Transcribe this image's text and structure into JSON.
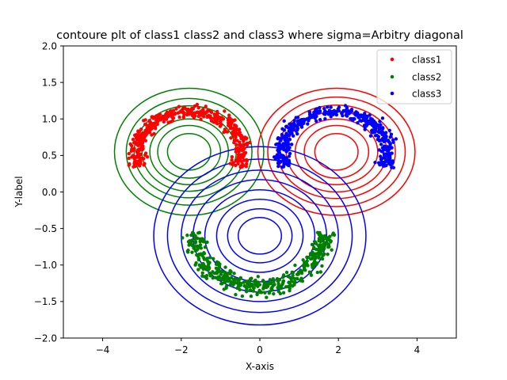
{
  "chart_data": {
    "type": "scatter",
    "title": "contoure plt of class1 class2 and class3 where sigma=Arbitry diagonal",
    "xlabel": "X-axis",
    "ylabel": "Y-label",
    "xlim": [
      -5,
      5
    ],
    "ylim": [
      -2,
      2
    ],
    "xticks": [
      "−4",
      "−2",
      "0",
      "2",
      "4"
    ],
    "yticks": [
      "−2.0",
      "−1.5",
      "−1.0",
      "−0.5",
      "0.0",
      "0.5",
      "1.0",
      "1.5",
      "2.0"
    ],
    "legend_position": "top-right",
    "series": [
      {
        "name": "class1",
        "color": "#ff0000",
        "shape": "upper-arc",
        "arc_center": [
          -1.8,
          0.55
        ],
        "arc_radius": [
          1.35,
          0.55
        ],
        "radial_spread": 0.08,
        "x_range": [
          -3.3,
          -0.7
        ],
        "y_range": [
          -0.3,
          1.2
        ],
        "approx_points": 420
      },
      {
        "name": "class2",
        "color": "#008000",
        "shape": "lower-arc",
        "arc_center": [
          0.0,
          -0.55
        ],
        "arc_radius": [
          1.65,
          0.75
        ],
        "radial_spread": 0.08,
        "x_range": [
          -1.7,
          1.8
        ],
        "y_range": [
          -1.4,
          0.5
        ],
        "approx_points": 420
      },
      {
        "name": "class3",
        "color": "#0000ff",
        "shape": "upper-arc",
        "arc_center": [
          1.9,
          0.55
        ],
        "arc_radius": [
          1.35,
          0.55
        ],
        "radial_spread": 0.08,
        "x_range": [
          0.4,
          3.3
        ],
        "y_range": [
          -0.3,
          1.2
        ],
        "approx_points": 420
      }
    ],
    "contours": [
      {
        "color": "#008000",
        "center": [
          -1.8,
          0.55
        ],
        "levels": [
          {
            "rx": 1.9,
            "ry": 0.87
          },
          {
            "rx": 1.6,
            "ry": 0.73
          },
          {
            "rx": 1.4,
            "ry": 0.63
          },
          {
            "rx": 1.2,
            "ry": 0.54
          },
          {
            "rx": 1.0,
            "ry": 0.45
          },
          {
            "rx": 0.8,
            "ry": 0.36
          },
          {
            "rx": 0.55,
            "ry": 0.25
          }
        ]
      },
      {
        "color": "#ff0000",
        "center": [
          1.95,
          0.55
        ],
        "levels": [
          {
            "rx": 2.0,
            "ry": 0.87
          },
          {
            "rx": 1.75,
            "ry": 0.75
          },
          {
            "rx": 1.5,
            "ry": 0.64
          },
          {
            "rx": 1.28,
            "ry": 0.55
          },
          {
            "rx": 1.05,
            "ry": 0.45
          },
          {
            "rx": 0.82,
            "ry": 0.36
          },
          {
            "rx": 0.55,
            "ry": 0.25
          }
        ]
      },
      {
        "color": "#0000ff",
        "center": [
          0.0,
          -0.6
        ],
        "levels": [
          {
            "rx": 2.7,
            "ry": 1.22
          },
          {
            "rx": 2.35,
            "ry": 1.05
          },
          {
            "rx": 2.0,
            "ry": 0.9
          },
          {
            "rx": 1.7,
            "ry": 0.77
          },
          {
            "rx": 1.4,
            "ry": 0.63
          },
          {
            "rx": 1.1,
            "ry": 0.5
          },
          {
            "rx": 0.82,
            "ry": 0.37
          },
          {
            "rx": 0.55,
            "ry": 0.25
          }
        ]
      }
    ]
  }
}
